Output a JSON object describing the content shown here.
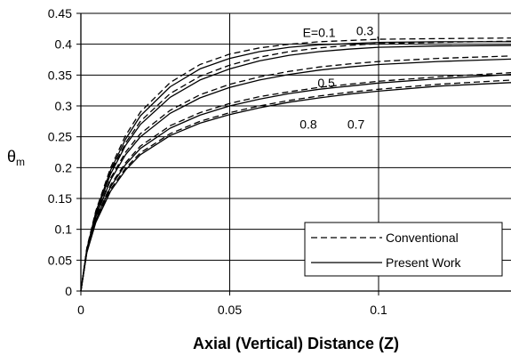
{
  "chart_data": {
    "type": "line",
    "title": "",
    "xlabel": "Axial (Vertical) Distance (Z)",
    "ylabel": "θ",
    "ylabel_sub": "m",
    "xlim": [
      0,
      0.145
    ],
    "ylim": [
      0,
      0.45
    ],
    "x_ticks": [
      0,
      0.05,
      0.1
    ],
    "x_tick_labels": [
      "0",
      "0.05",
      "0.1"
    ],
    "y_ticks": [
      0,
      0.05,
      0.1,
      0.15,
      0.2,
      0.25,
      0.3,
      0.35,
      0.4,
      0.45
    ],
    "y_tick_labels": [
      "0",
      "0.05",
      "0.1",
      "0.15",
      "0.2",
      "0.25",
      "0.3",
      "0.35",
      "0.4",
      "0.45"
    ],
    "grid": {
      "horizontal": true,
      "vertical": true
    },
    "legend": {
      "position": "bottom-right",
      "entries": [
        {
          "label": "Conventional",
          "style": "dashed"
        },
        {
          "label": "Present Work",
          "style": "solid"
        }
      ]
    },
    "annotations": [
      {
        "text": "E=0.1",
        "x": 0.0745,
        "y": 0.412
      },
      {
        "text": "0.3",
        "x": 0.0925,
        "y": 0.415,
        "leader_to": [
          0.1,
          0.404
        ]
      },
      {
        "text": "0.5",
        "x": 0.0795,
        "y": 0.3305
      },
      {
        "text": "0.8",
        "x": 0.0735,
        "y": 0.2635
      },
      {
        "text": "0.7",
        "x": 0.0895,
        "y": 0.2635
      }
    ],
    "series": [
      {
        "group": "E=0.1",
        "method": "Conventional",
        "style": "dashed",
        "x": [
          0,
          0.002,
          0.005,
          0.01,
          0.015,
          0.02,
          0.03,
          0.04,
          0.05,
          0.06,
          0.07,
          0.08,
          0.09,
          0.1,
          0.12,
          0.145
        ],
        "y": [
          0,
          0.07,
          0.13,
          0.2,
          0.252,
          0.29,
          0.338,
          0.367,
          0.384,
          0.394,
          0.4,
          0.404,
          0.406,
          0.408,
          0.409,
          0.41
        ]
      },
      {
        "group": "E=0.1",
        "method": "Present Work",
        "style": "solid",
        "x": [
          0,
          0.002,
          0.005,
          0.01,
          0.015,
          0.02,
          0.03,
          0.04,
          0.05,
          0.06,
          0.07,
          0.08,
          0.09,
          0.1,
          0.12,
          0.145
        ],
        "y": [
          0,
          0.068,
          0.128,
          0.196,
          0.246,
          0.284,
          0.331,
          0.36,
          0.377,
          0.388,
          0.395,
          0.399,
          0.401,
          0.403,
          0.404,
          0.404
        ]
      },
      {
        "group": "E=0.3",
        "method": "Conventional",
        "style": "dashed",
        "x": [
          0,
          0.002,
          0.005,
          0.01,
          0.015,
          0.02,
          0.03,
          0.04,
          0.05,
          0.06,
          0.07,
          0.08,
          0.09,
          0.1,
          0.12,
          0.145
        ],
        "y": [
          0,
          0.068,
          0.127,
          0.193,
          0.24,
          0.275,
          0.32,
          0.348,
          0.366,
          0.379,
          0.388,
          0.394,
          0.398,
          0.401,
          0.403,
          0.405
        ]
      },
      {
        "group": "E=0.3",
        "method": "Present Work",
        "style": "solid",
        "x": [
          0,
          0.002,
          0.005,
          0.01,
          0.015,
          0.02,
          0.03,
          0.04,
          0.05,
          0.06,
          0.07,
          0.08,
          0.09,
          0.1,
          0.12,
          0.145
        ],
        "y": [
          0,
          0.067,
          0.125,
          0.19,
          0.236,
          0.27,
          0.314,
          0.342,
          0.36,
          0.373,
          0.382,
          0.388,
          0.392,
          0.395,
          0.397,
          0.398
        ]
      },
      {
        "group": "E=0.5",
        "method": "Conventional",
        "style": "dashed",
        "x": [
          0,
          0.002,
          0.005,
          0.01,
          0.015,
          0.02,
          0.03,
          0.04,
          0.05,
          0.06,
          0.07,
          0.08,
          0.09,
          0.1,
          0.12,
          0.145
        ],
        "y": [
          0,
          0.066,
          0.122,
          0.183,
          0.225,
          0.255,
          0.293,
          0.318,
          0.335,
          0.347,
          0.356,
          0.363,
          0.368,
          0.372,
          0.377,
          0.381
        ]
      },
      {
        "group": "E=0.5",
        "method": "Present Work",
        "style": "solid",
        "x": [
          0,
          0.002,
          0.005,
          0.01,
          0.015,
          0.02,
          0.03,
          0.04,
          0.05,
          0.06,
          0.07,
          0.08,
          0.09,
          0.1,
          0.12,
          0.145
        ],
        "y": [
          0,
          0.065,
          0.12,
          0.18,
          0.221,
          0.25,
          0.288,
          0.313,
          0.33,
          0.342,
          0.351,
          0.358,
          0.363,
          0.367,
          0.372,
          0.376
        ]
      },
      {
        "group": "E=0.7",
        "method": "Conventional",
        "style": "dashed",
        "x": [
          0,
          0.002,
          0.005,
          0.01,
          0.015,
          0.02,
          0.03,
          0.04,
          0.05,
          0.06,
          0.07,
          0.08,
          0.09,
          0.1,
          0.12,
          0.145
        ],
        "y": [
          0,
          0.064,
          0.117,
          0.172,
          0.208,
          0.235,
          0.268,
          0.289,
          0.304,
          0.315,
          0.323,
          0.33,
          0.335,
          0.34,
          0.347,
          0.354
        ]
      },
      {
        "group": "E=0.7",
        "method": "Present Work",
        "style": "solid",
        "x": [
          0,
          0.002,
          0.005,
          0.01,
          0.015,
          0.02,
          0.03,
          0.04,
          0.05,
          0.06,
          0.07,
          0.08,
          0.09,
          0.1,
          0.12,
          0.145
        ],
        "y": [
          0,
          0.063,
          0.115,
          0.169,
          0.205,
          0.231,
          0.264,
          0.285,
          0.3,
          0.311,
          0.32,
          0.327,
          0.332,
          0.337,
          0.344,
          0.351
        ]
      },
      {
        "group": "E=0.8",
        "method": "Conventional",
        "style": "dashed",
        "x": [
          0,
          0.002,
          0.005,
          0.01,
          0.015,
          0.02,
          0.03,
          0.04,
          0.05,
          0.06,
          0.07,
          0.08,
          0.09,
          0.1,
          0.12,
          0.145
        ],
        "y": [
          0,
          0.063,
          0.113,
          0.165,
          0.199,
          0.224,
          0.255,
          0.275,
          0.289,
          0.3,
          0.309,
          0.316,
          0.322,
          0.327,
          0.335,
          0.342
        ]
      },
      {
        "group": "E=0.8",
        "method": "Present Work",
        "style": "solid",
        "x": [
          0,
          0.002,
          0.005,
          0.01,
          0.015,
          0.02,
          0.03,
          0.04,
          0.05,
          0.06,
          0.07,
          0.08,
          0.09,
          0.1,
          0.12,
          0.145
        ],
        "y": [
          0,
          0.062,
          0.111,
          0.162,
          0.196,
          0.221,
          0.252,
          0.272,
          0.286,
          0.297,
          0.306,
          0.313,
          0.319,
          0.324,
          0.332,
          0.338
        ]
      }
    ]
  }
}
